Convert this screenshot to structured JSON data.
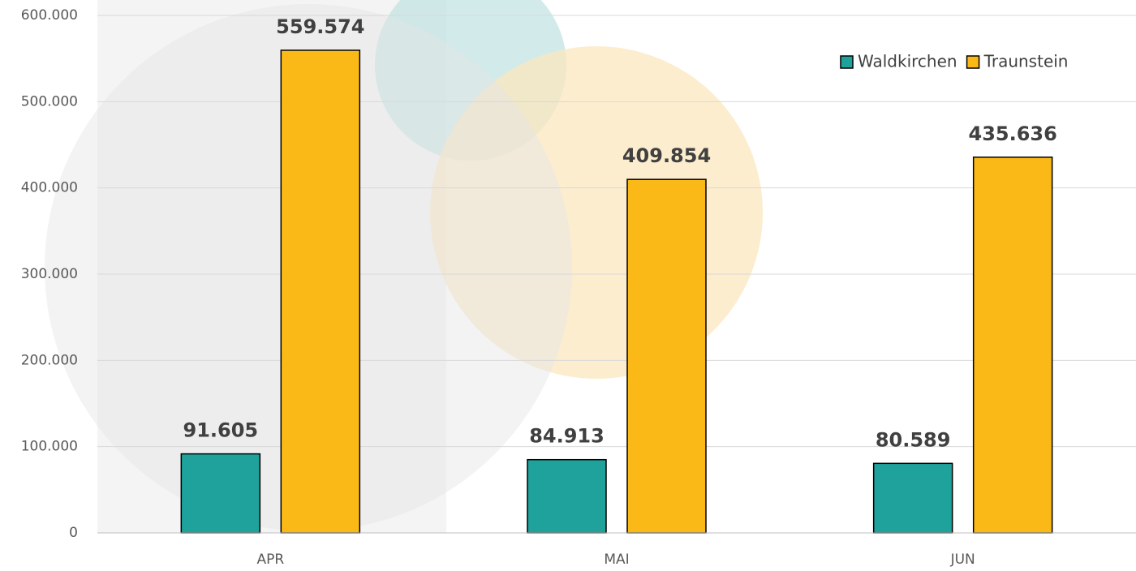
{
  "chart_data": {
    "type": "bar",
    "categories": [
      "APR",
      "MAI",
      "JUN"
    ],
    "series": [
      {
        "name": "Waldkirchen",
        "color": "#1fa29b",
        "values": [
          91605,
          84913,
          80589
        ],
        "value_labels": [
          "91.605",
          "84.913",
          "80.589"
        ]
      },
      {
        "name": "Traunstein",
        "color": "#fbb917",
        "values": [
          559574,
          409854,
          435636
        ],
        "value_labels": [
          "559.574",
          "409.854",
          "435.636"
        ]
      }
    ],
    "ylim": [
      0,
      600000
    ],
    "yticks": [
      0,
      {
        "value": 100000,
        "label": "100.000"
      },
      {
        "value": 200000,
        "label": "200.000"
      },
      {
        "value": 300000,
        "label": "300.000"
      },
      {
        "value": 400000,
        "label": "400.000"
      },
      {
        "value": 500000,
        "label": "500.000"
      },
      {
        "value": 600000,
        "label": "600.000"
      }
    ],
    "grid": true,
    "legend": "top-right"
  }
}
